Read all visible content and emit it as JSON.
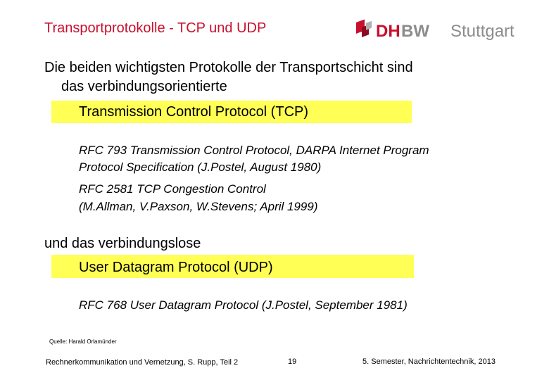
{
  "header": {
    "title": "Transportprotokolle - TCP und UDP",
    "logo": {
      "part1": "DH",
      "part2": "BW",
      "city": "Stuttgart"
    }
  },
  "body": {
    "intro": [
      "Die beiden wichtigsten Protokolle der Transportschicht sind",
      "das verbindungsorientierte"
    ],
    "tcp": {
      "name": "Transmission Control Protocol (TCP)",
      "refs": [
        [
          "RFC 793   Transmission Control Protocol, DARPA Internet Program",
          "Protocol Specification  (J.Postel, August 1980)"
        ],
        [
          "RFC 2581 TCP Congestion Control",
          "(M.Allman, V.Paxson, W.Stevens; April 1999)"
        ]
      ]
    },
    "connector": "und das verbindungslose",
    "udp": {
      "name": "User Datagram Protocol (UDP)",
      "refs": [
        [
          "RFC 768   User Datagram Protocol  (J.Postel, September 1981)"
        ]
      ]
    },
    "source": "Quelle: Harald Orlamünder"
  },
  "footer": {
    "left": "Rechnerkommunikation und Vernetzung, S. Rupp, Teil 2",
    "page": "19",
    "right": "5. Semester, Nachrichtentechnik, 2013"
  }
}
